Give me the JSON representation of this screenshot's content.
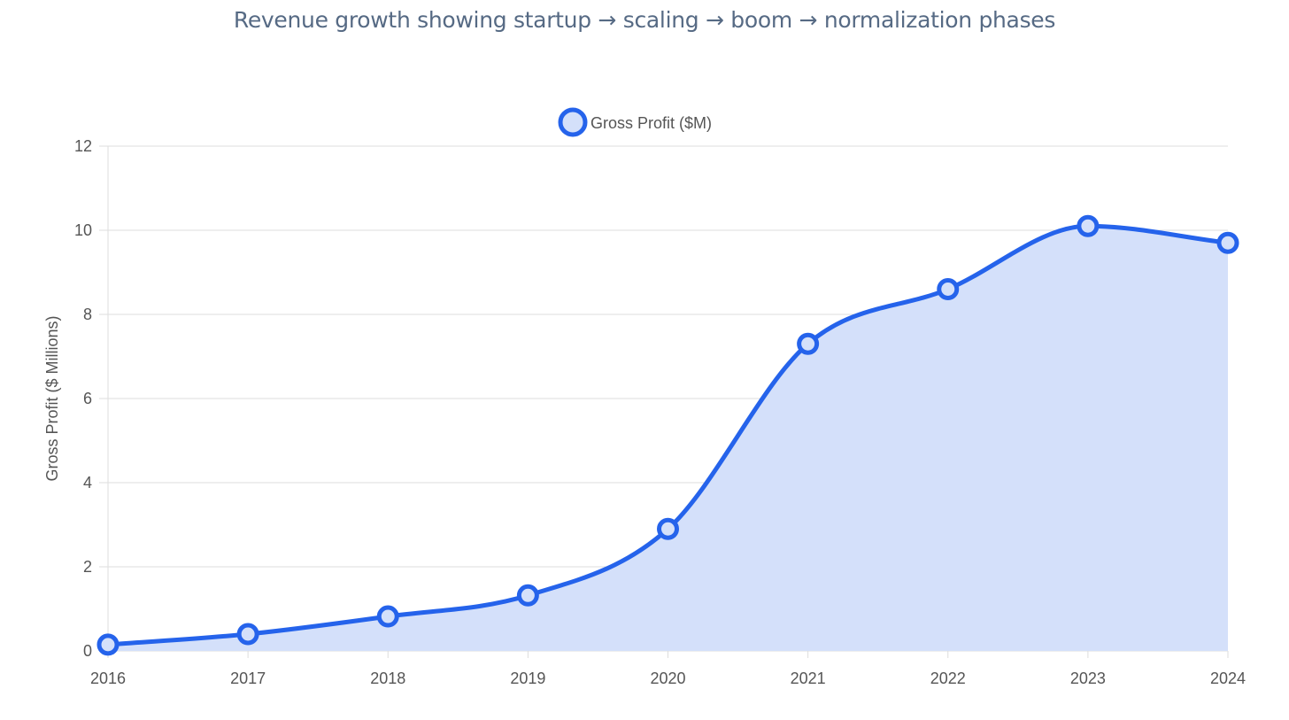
{
  "chart_data": {
    "type": "area",
    "title": "Revenue growth showing startup → scaling → boom → normalization phases",
    "x": [
      "2016",
      "2017",
      "2018",
      "2019",
      "2020",
      "2021",
      "2022",
      "2023",
      "2024"
    ],
    "series": [
      {
        "name": "Gross Profit ($M)",
        "values": [
          0.15,
          0.4,
          0.82,
          1.32,
          2.9,
          7.3,
          8.6,
          10.1,
          9.7
        ],
        "line_color": "#2563eb",
        "fill_color": "#d4e0fa"
      }
    ],
    "xlabel": "",
    "ylabel": "Gross Profit ($ Millions)",
    "ylim": [
      0,
      12
    ],
    "yticks": [
      "0",
      "2",
      "4",
      "6",
      "8",
      "10",
      "12"
    ],
    "grid": true,
    "legend_position": "top-center",
    "colors": {
      "grid": "#dddddd",
      "text": "#555555",
      "title": "#566a84"
    }
  }
}
